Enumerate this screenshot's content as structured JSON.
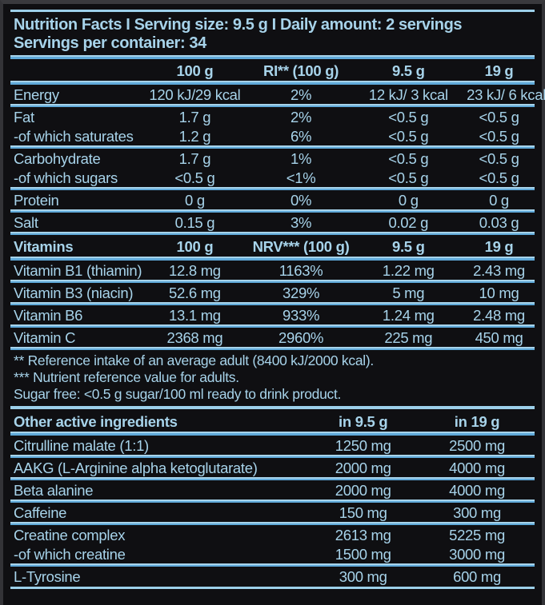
{
  "colors": {
    "text": "#a7d3ea",
    "rule_light": "#a7d3ea",
    "rule_strong": "#5fa9d9",
    "background": "#0f0f12"
  },
  "title": {
    "line1": "Nutrition Facts I Serving size: 9.5 g I Daily amount: 2 servings",
    "line2": "Servings per container: 34"
  },
  "nutrition_table": {
    "columns": [
      "",
      "100 g",
      "RI** (100 g)",
      "9.5 g",
      "19 g"
    ],
    "groups": [
      [
        [
          "Energy",
          "120 kJ/29 kcal",
          "2%",
          "12 kJ/ 3 kcal",
          "23 kJ/ 6 kcal"
        ]
      ],
      [
        [
          "Fat",
          "1.7 g",
          "2%",
          "<0.5 g",
          "<0.5 g"
        ],
        [
          "-of which saturates",
          "1.2 g",
          "6%",
          "<0.5 g",
          "<0.5 g"
        ]
      ],
      [
        [
          "Carbohydrate",
          "1.7 g",
          "1%",
          "<0.5 g",
          "<0.5 g"
        ],
        [
          "-of which sugars",
          "<0.5 g",
          "<1%",
          "<0.5 g",
          "<0.5 g"
        ]
      ],
      [
        [
          "Protein",
          "0 g",
          "0%",
          "0 g",
          "0 g"
        ]
      ],
      [
        [
          "Salt",
          "0.15 g",
          "3%",
          "0.02 g",
          "0.03 g"
        ]
      ]
    ]
  },
  "vitamins_table": {
    "columns": [
      "Vitamins",
      "100 g",
      "NRV*** (100 g)",
      "9.5 g",
      "19 g"
    ],
    "groups": [
      [
        [
          "Vitamin B1 (thiamin)",
          "12.8 mg",
          "1163%",
          "1.22 mg",
          "2.43 mg"
        ]
      ],
      [
        [
          "Vitamin B3 (niacin)",
          "52.6 mg",
          "329%",
          "5 mg",
          "10 mg"
        ]
      ],
      [
        [
          "Vitamin B6",
          "13.1 mg",
          "933%",
          "1.24 mg",
          "2.48 mg"
        ]
      ],
      [
        [
          "Vitamin C",
          "2368 mg",
          "2960%",
          "225 mg",
          "450 mg"
        ]
      ]
    ]
  },
  "footnotes": [
    "** Reference intake of an average adult (8400 kJ/2000 kcal).",
    "*** Nutrient reference value for adults.",
    "Sugar free: <0.5 g sugar/100 ml ready to drink product."
  ],
  "other_table": {
    "columns": [
      "Other active ingredients",
      "in 9.5 g",
      "in 19 g"
    ],
    "groups": [
      [
        [
          "Citrulline malate (1:1)",
          "1250 mg",
          "2500 mg"
        ]
      ],
      [
        [
          "AAKG (L-Arginine alpha ketoglutarate)",
          "2000 mg",
          "4000 mg"
        ]
      ],
      [
        [
          "Beta alanine",
          "2000 mg",
          "4000 mg"
        ]
      ],
      [
        [
          "Caffeine",
          "150 mg",
          "300 mg"
        ]
      ],
      [
        [
          "Creatine complex",
          "2613 mg",
          "5225 mg"
        ],
        [
          "-of which creatine",
          "1500 mg",
          "3000 mg"
        ]
      ],
      [
        [
          "L-Tyrosine",
          "300 mg",
          "600 mg"
        ]
      ]
    ]
  }
}
